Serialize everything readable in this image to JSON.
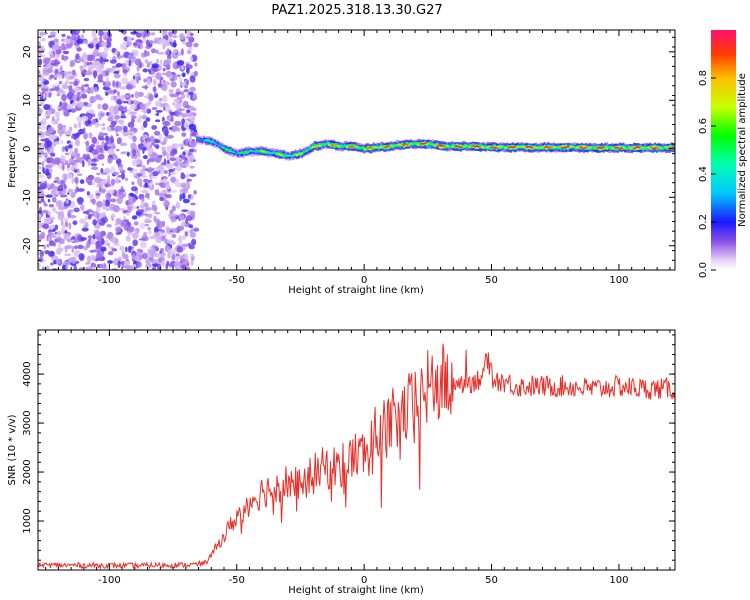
{
  "title": "PAZ1.2025.318.13.30.G27",
  "chart_data": [
    {
      "type": "heatmap",
      "panel": "spectrogram",
      "xlabel": "Height of straight line (km)",
      "ylabel": "Frequency (Hz)",
      "xlim": [
        -128,
        122
      ],
      "ylim": [
        -25,
        24.5
      ],
      "xticks": [
        -100,
        -50,
        0,
        50,
        100
      ],
      "yticks": [
        -20,
        -10,
        0,
        10,
        20
      ],
      "colorbar": {
        "label": "Normalized spectral amplitude",
        "range": [
          0,
          1
        ],
        "ticks": [
          0.0,
          0.2,
          0.4,
          0.6,
          0.8
        ]
      },
      "noise_region_km": [
        -128,
        -66
      ],
      "tone_track": {
        "x_km": [
          -66,
          -60,
          -55,
          -50,
          -45,
          -40,
          -35,
          -30,
          -25,
          -20,
          -15,
          -10,
          -5,
          0,
          5,
          10,
          15,
          20,
          25,
          30,
          40,
          50,
          60,
          70,
          80,
          90,
          100,
          110,
          122
        ],
        "freq_hz": [
          2.0,
          1.5,
          0.0,
          -1.0,
          -0.5,
          -0.5,
          -1.0,
          -1.5,
          -1.0,
          0.5,
          1.0,
          0.5,
          0.5,
          0.0,
          0.3,
          0.5,
          0.8,
          1.0,
          1.0,
          0.5,
          0.5,
          0.3,
          0.3,
          0.3,
          0.3,
          0.2,
          0.2,
          0.2,
          0.2
        ],
        "peak_amplitude": [
          0.45,
          0.5,
          0.55,
          0.55,
          0.6,
          0.65,
          0.7,
          0.7,
          0.75,
          0.8,
          0.85,
          0.85,
          0.9,
          0.9,
          0.95,
          0.95,
          0.95,
          0.95,
          0.95,
          1.0,
          1.0,
          1.0,
          1.0,
          1.0,
          1.0,
          1.0,
          1.0,
          1.0,
          1.0
        ]
      }
    },
    {
      "type": "line",
      "panel": "snr",
      "xlabel": "Height of straight line (km)",
      "ylabel": "SNR (10 * v/v)",
      "xlim": [
        -128,
        122
      ],
      "ylim": [
        0,
        4900
      ],
      "xticks": [
        -100,
        -50,
        0,
        50,
        100
      ],
      "yticks": [
        1000,
        2000,
        3000,
        4000
      ],
      "color": "#e8302a",
      "series": [
        {
          "name": "SNR",
          "x": [
            -128,
            -110,
            -90,
            -75,
            -66,
            -62,
            -60,
            -55,
            -50,
            -45,
            -40,
            -35,
            -30,
            -25,
            -20,
            -15,
            -10,
            -5,
            0,
            5,
            10,
            15,
            20,
            25,
            30,
            35,
            40,
            45,
            48,
            50,
            55,
            60,
            70,
            80,
            90,
            100,
            110,
            122
          ],
          "values": [
            100,
            95,
            90,
            100,
            110,
            150,
            300,
            700,
            1100,
            1400,
            1600,
            1700,
            1800,
            1750,
            1950,
            2100,
            2100,
            2300,
            2400,
            2800,
            3000,
            3200,
            3400,
            3700,
            3800,
            3850,
            3800,
            3900,
            4200,
            3900,
            3850,
            3750,
            3750,
            3750,
            3700,
            3750,
            3700,
            3700
          ]
        }
      ]
    }
  ]
}
